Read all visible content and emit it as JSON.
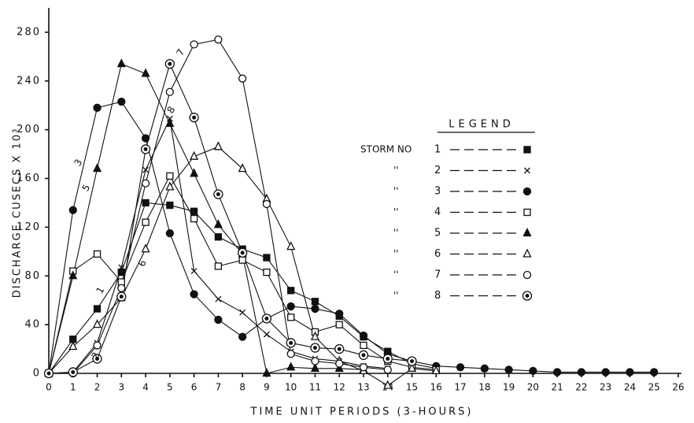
{
  "chart_data": {
    "type": "line",
    "x_label": "TIME UNIT PERIODS (3-HOURS)",
    "y_label": "DISCHARGE CUSECS X 10³",
    "legend_title": "LEGEND",
    "legend_label": "STORM NO",
    "legend_ditto": "''",
    "x": [
      0,
      1,
      2,
      3,
      4,
      5,
      6,
      7,
      8,
      9,
      10,
      11,
      12,
      13,
      14,
      15,
      16,
      17,
      18,
      19,
      20,
      21,
      22,
      23,
      24,
      25,
      26
    ],
    "xlim": [
      0,
      26
    ],
    "xticks": [
      0,
      1,
      2,
      3,
      4,
      5,
      6,
      7,
      8,
      9,
      10,
      11,
      12,
      13,
      14,
      15,
      16,
      17,
      18,
      19,
      20,
      21,
      22,
      23,
      24,
      25,
      26
    ],
    "ylim": [
      0,
      300
    ],
    "yticks": [
      0,
      40,
      80,
      120,
      160,
      200,
      240,
      280
    ],
    "curve_labels": [
      "1",
      "2",
      "3",
      "5",
      "6",
      "7",
      "8"
    ],
    "series": [
      {
        "name": "1",
        "color": "#111111",
        "marker": "square-filled",
        "values": [
          0,
          28,
          53,
          83,
          140,
          138,
          133,
          112,
          102,
          95,
          68,
          59,
          47,
          30,
          18,
          8,
          4,
          null,
          null,
          null,
          null,
          null,
          null,
          null,
          null,
          null,
          null
        ]
      },
      {
        "name": "2",
        "color": "#111111",
        "marker": "x",
        "values": [
          0,
          1,
          25,
          87,
          167,
          209,
          84,
          61,
          50,
          32,
          18,
          12,
          10,
          6,
          4,
          null,
          null,
          null,
          null,
          null,
          null,
          null,
          null,
          null,
          null,
          null,
          null
        ]
      },
      {
        "name": "3",
        "color": "#111111",
        "marker": "circle-filled",
        "values": [
          0,
          134,
          218,
          223,
          193,
          115,
          65,
          44,
          30,
          45,
          55,
          53,
          49,
          31,
          16,
          10,
          6,
          5,
          4,
          3,
          2,
          1,
          1,
          1,
          1,
          1,
          null
        ]
      },
      {
        "name": "4",
        "color": "#111111",
        "marker": "square",
        "values": [
          0,
          84,
          98,
          75,
          124,
          162,
          127,
          88,
          93,
          83,
          46,
          34,
          40,
          23,
          10,
          5,
          3,
          null,
          null,
          null,
          null,
          null,
          null,
          null,
          null,
          null,
          null
        ]
      },
      {
        "name": "5",
        "color": "#111111",
        "marker": "triangle-filled",
        "values": [
          0,
          80,
          168,
          254,
          246,
          205,
          164,
          122,
          98,
          0,
          5,
          4,
          4,
          3,
          null,
          null,
          null,
          null,
          null,
          null,
          null,
          null,
          null,
          null,
          null,
          null,
          null
        ]
      },
      {
        "name": "6",
        "color": "#111111",
        "marker": "triangle",
        "values": [
          0,
          22,
          40,
          62,
          102,
          153,
          178,
          186,
          168,
          143,
          104,
          30,
          10,
          2,
          -10,
          4,
          2,
          null,
          null,
          null,
          null,
          null,
          null,
          null,
          null,
          null,
          null
        ]
      },
      {
        "name": "7",
        "color": "#111111",
        "marker": "circle",
        "values": [
          0,
          0,
          23,
          70,
          156,
          231,
          270,
          274,
          242,
          139,
          16,
          10,
          8,
          5,
          3,
          null,
          null,
          null,
          null,
          null,
          null,
          null,
          null,
          null,
          null,
          null,
          null
        ]
      },
      {
        "name": "8",
        "color": "#111111",
        "marker": "double-circle",
        "values": [
          0,
          1,
          12,
          63,
          184,
          254,
          210,
          147,
          99,
          45,
          25,
          21,
          20,
          15,
          12,
          10,
          null,
          null,
          null,
          null,
          null,
          null,
          null,
          null,
          null,
          null,
          null
        ]
      }
    ]
  }
}
